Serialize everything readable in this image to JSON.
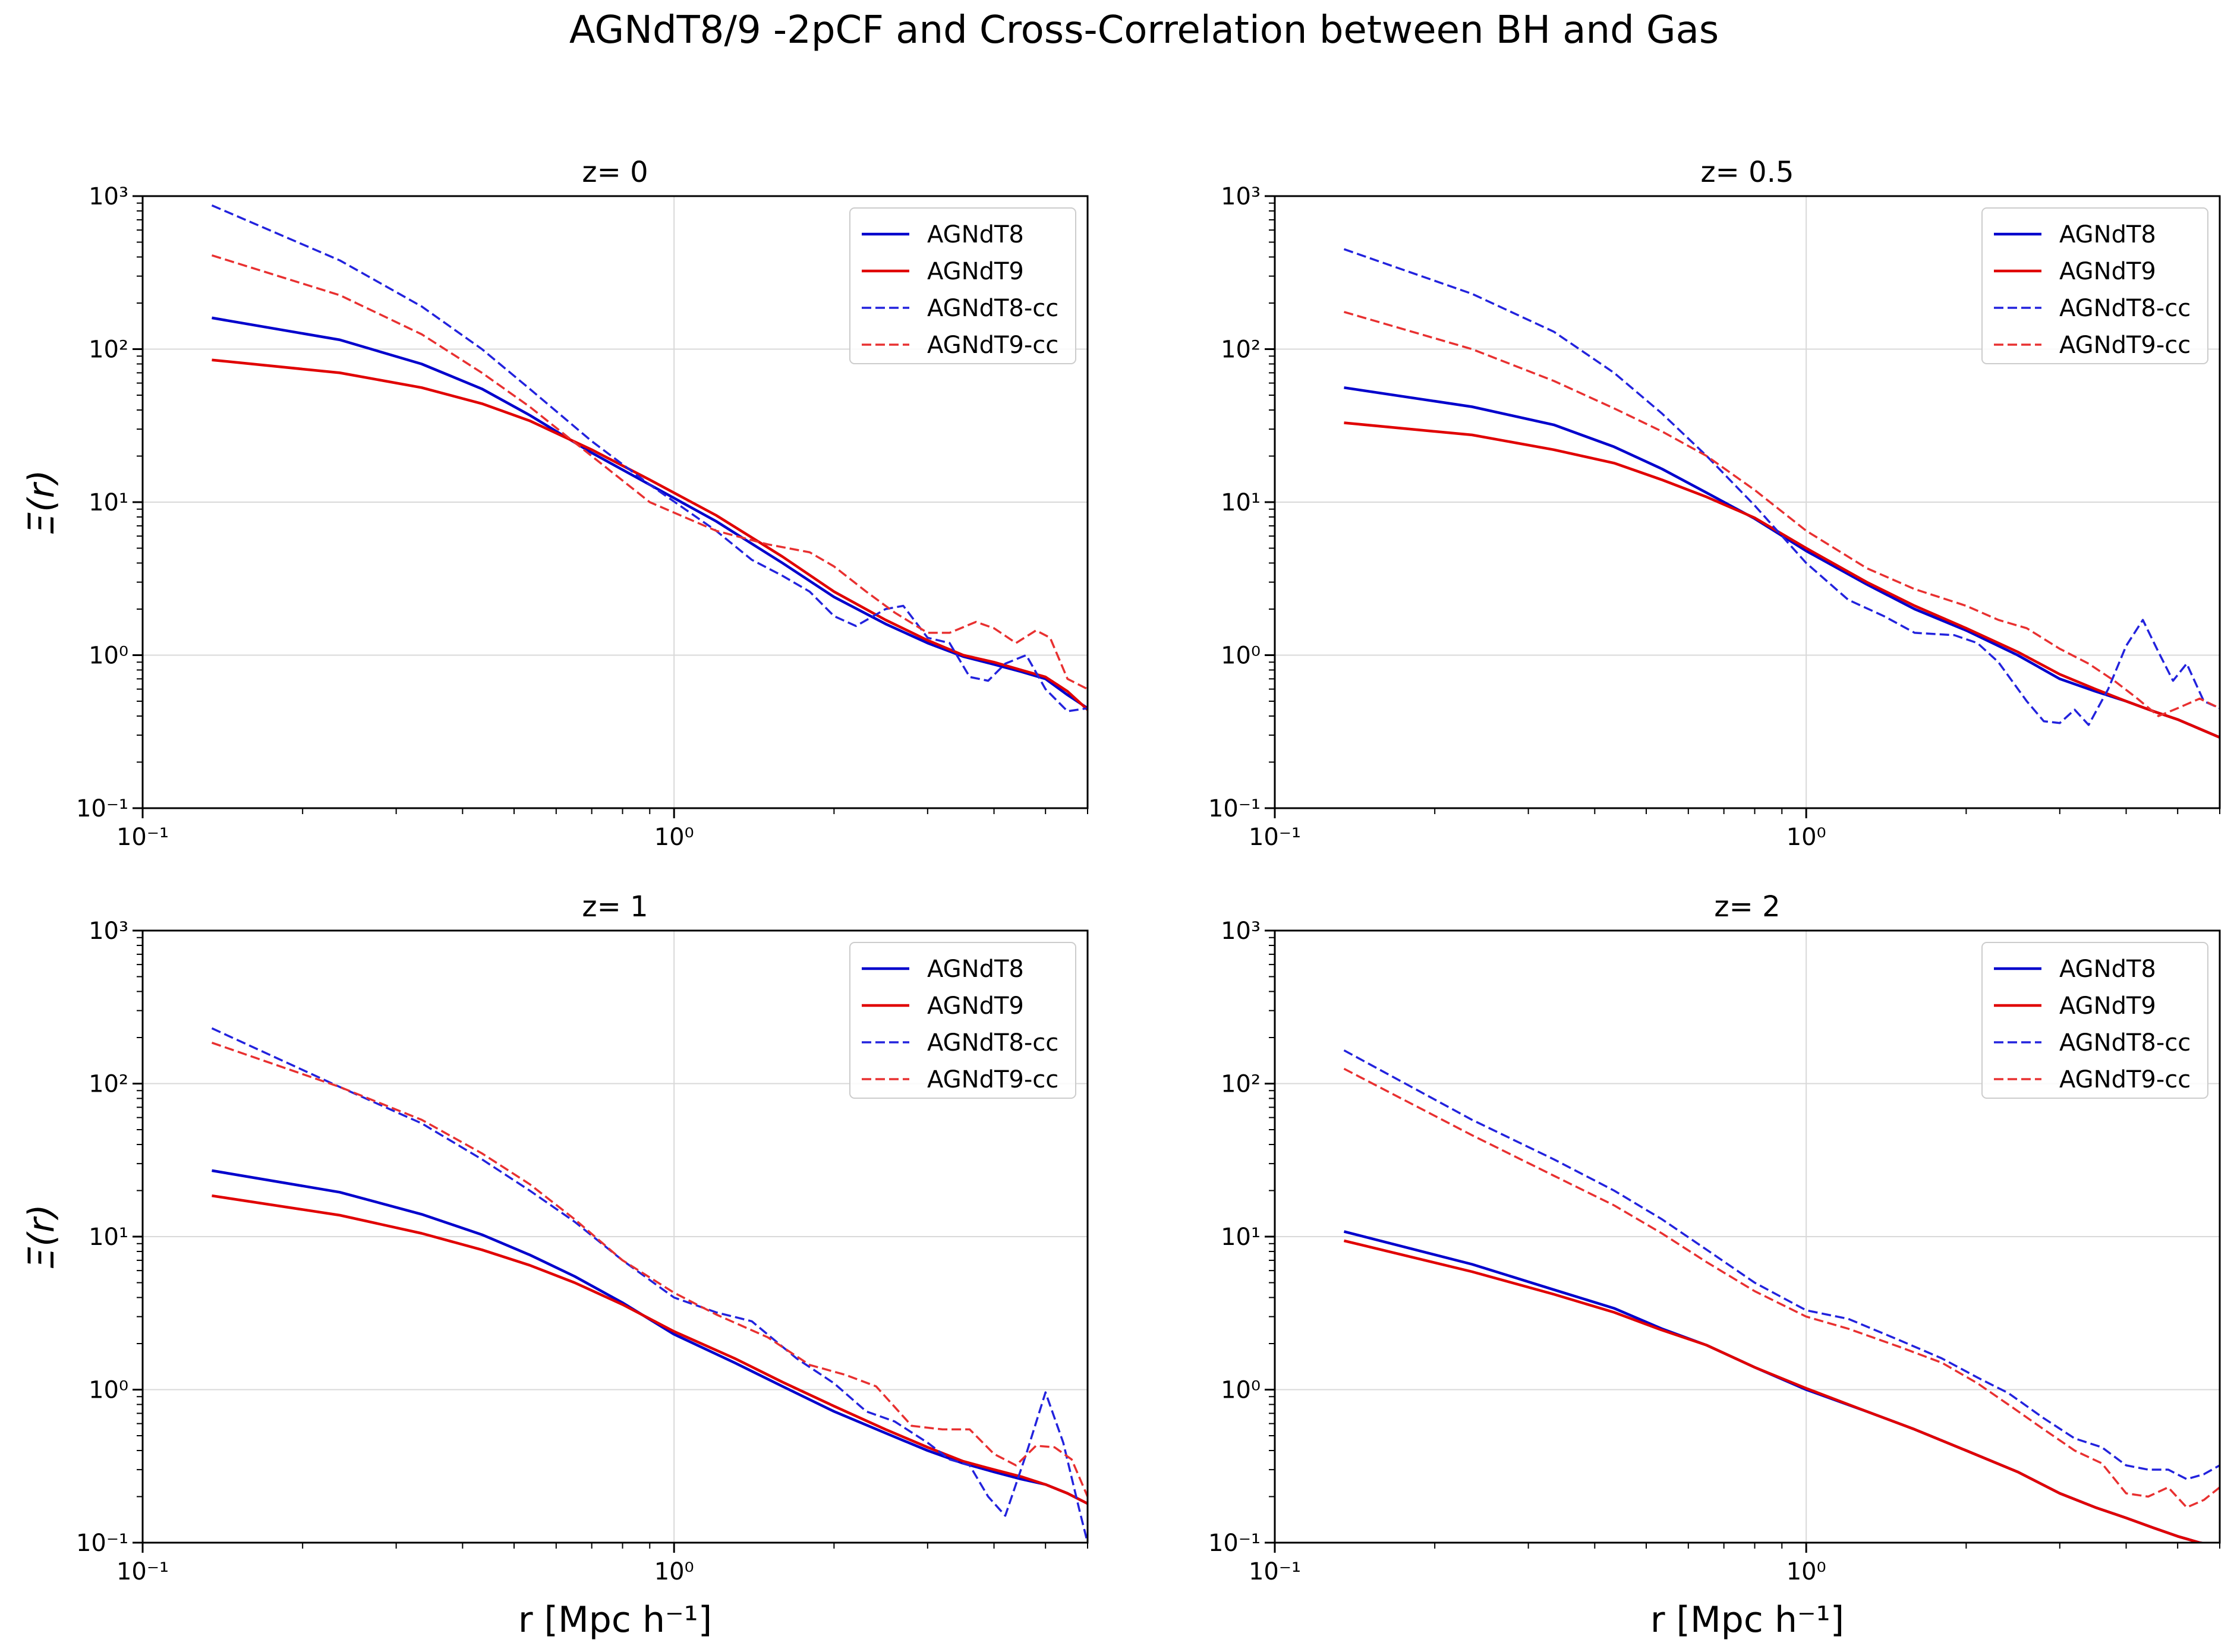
{
  "title": "AGNdT8/9 -2pCF and Cross-Correlation between BH and Gas",
  "ylabel": "Ξ(r)",
  "xlabel": "r [Mpc h⁻¹]",
  "series_styles": [
    {
      "name": "AGNdT8",
      "color": "#0000cc",
      "dash": "solid"
    },
    {
      "name": "AGNdT9",
      "color": "#e00000",
      "dash": "solid"
    },
    {
      "name": "AGNdT8-cc",
      "color": "#2222dd",
      "dash": "dashed"
    },
    {
      "name": "AGNdT9-cc",
      "color": "#e83030",
      "dash": "dashed"
    }
  ],
  "chart_data": [
    {
      "type": "line",
      "title": "z= 0",
      "xscale": "log",
      "yscale": "log",
      "xlim": [
        0.1,
        6.0
      ],
      "ylim": [
        0.1,
        1000
      ],
      "xticks": [
        0.1,
        1
      ],
      "xtick_labels": [
        "10⁻¹",
        "10⁰"
      ],
      "yticks": [
        0.1,
        1,
        10,
        100,
        1000
      ],
      "ytick_labels": [
        "10⁻¹",
        "10⁰",
        "10¹",
        "10²",
        "10³"
      ],
      "grid": true,
      "legend": "top-right",
      "series": [
        {
          "name": "AGNdT8",
          "x": [
            0.135,
            0.235,
            0.335,
            0.435,
            0.535,
            0.7,
            0.9,
            1.2,
            1.6,
            2.0,
            2.5,
            3.0,
            3.5,
            4.0,
            4.5,
            5.0,
            5.5,
            6.0
          ],
          "y": [
            160,
            115,
            80,
            55,
            37,
            21,
            13,
            7.5,
            4.0,
            2.4,
            1.6,
            1.2,
            0.98,
            0.87,
            0.78,
            0.7,
            0.55,
            0.45
          ]
        },
        {
          "name": "AGNdT9",
          "x": [
            0.135,
            0.235,
            0.335,
            0.435,
            0.535,
            0.7,
            0.9,
            1.2,
            1.6,
            2.0,
            2.5,
            3.0,
            3.5,
            4.0,
            4.5,
            5.0,
            5.5,
            6.0
          ],
          "y": [
            85,
            70,
            56,
            44,
            34,
            22,
            14,
            8.2,
            4.4,
            2.6,
            1.7,
            1.25,
            1.0,
            0.9,
            0.8,
            0.72,
            0.58,
            0.44
          ]
        },
        {
          "name": "AGNdT8-cc",
          "x": [
            0.135,
            0.235,
            0.335,
            0.435,
            0.535,
            0.7,
            0.9,
            1.2,
            1.4,
            1.6,
            1.8,
            2.0,
            2.2,
            2.5,
            2.7,
            3.0,
            3.3,
            3.6,
            3.9,
            4.2,
            4.6,
            5.0,
            5.5,
            6.0
          ],
          "y": [
            870,
            380,
            190,
            100,
            55,
            25,
            13,
            6.5,
            4.2,
            3.3,
            2.6,
            1.8,
            1.55,
            2.0,
            2.1,
            1.3,
            1.2,
            0.72,
            0.68,
            0.88,
            1.0,
            0.6,
            0.43,
            0.45
          ]
        },
        {
          "name": "AGNdT9-cc",
          "x": [
            0.135,
            0.235,
            0.335,
            0.435,
            0.535,
            0.7,
            0.9,
            1.2,
            1.5,
            1.8,
            2.0,
            2.3,
            2.6,
            3.0,
            3.3,
            3.7,
            4.0,
            4.4,
            4.8,
            5.1,
            5.5,
            6.0
          ],
          "y": [
            410,
            225,
            125,
            70,
            42,
            20,
            10,
            6.5,
            5.3,
            4.7,
            3.8,
            2.6,
            1.9,
            1.4,
            1.4,
            1.65,
            1.5,
            1.2,
            1.45,
            1.3,
            0.7,
            0.6
          ]
        }
      ]
    },
    {
      "type": "line",
      "title": "z= 0.5",
      "xscale": "log",
      "yscale": "log",
      "xlim": [
        0.1,
        6.0
      ],
      "ylim": [
        0.1,
        1000
      ],
      "xticks": [
        0.1,
        1
      ],
      "xtick_labels": [
        "10⁻¹",
        "10⁰"
      ],
      "yticks": [
        0.1,
        1,
        10,
        100,
        1000
      ],
      "ytick_labels": [
        "10⁻¹",
        "10⁰",
        "10¹",
        "10²",
        "10³"
      ],
      "grid": true,
      "legend": "top-right",
      "series": [
        {
          "name": "AGNdT8",
          "x": [
            0.135,
            0.235,
            0.335,
            0.435,
            0.535,
            0.65,
            0.8,
            1.0,
            1.3,
            1.6,
            2.0,
            2.5,
            3.0,
            3.5,
            4.0,
            4.5,
            5.0,
            5.5,
            6.0
          ],
          "y": [
            56,
            42,
            32,
            23,
            16.5,
            11.5,
            7.8,
            4.8,
            2.9,
            2.0,
            1.45,
            1.0,
            0.7,
            0.58,
            0.5,
            0.43,
            0.38,
            0.33,
            0.29
          ]
        },
        {
          "name": "AGNdT9",
          "x": [
            0.135,
            0.235,
            0.335,
            0.435,
            0.535,
            0.65,
            0.8,
            1.0,
            1.3,
            1.6,
            2.0,
            2.5,
            3.0,
            3.5,
            4.0,
            4.5,
            5.0,
            5.5,
            6.0
          ],
          "y": [
            33,
            27.5,
            22,
            18,
            14,
            10.8,
            7.9,
            5.0,
            3.0,
            2.1,
            1.5,
            1.05,
            0.75,
            0.6,
            0.5,
            0.43,
            0.38,
            0.33,
            0.29
          ]
        },
        {
          "name": "AGNdT8-cc",
          "x": [
            0.135,
            0.235,
            0.335,
            0.435,
            0.535,
            0.65,
            0.8,
            1.0,
            1.2,
            1.4,
            1.6,
            1.9,
            2.1,
            2.3,
            2.6,
            2.8,
            3.0,
            3.2,
            3.4,
            3.7,
            4.0,
            4.3,
            4.6,
            4.9,
            5.2,
            5.6,
            6.0
          ],
          "y": [
            450,
            230,
            130,
            70,
            38,
            20,
            9.5,
            4.0,
            2.3,
            1.8,
            1.4,
            1.35,
            1.2,
            0.9,
            0.5,
            0.37,
            0.36,
            0.44,
            0.35,
            0.6,
            1.15,
            1.7,
            1.05,
            0.68,
            0.88,
            0.5,
            0.45
          ]
        },
        {
          "name": "AGNdT9-cc",
          "x": [
            0.135,
            0.235,
            0.335,
            0.435,
            0.535,
            0.65,
            0.8,
            1.0,
            1.3,
            1.6,
            2.0,
            2.3,
            2.6,
            3.0,
            3.4,
            3.8,
            4.2,
            4.6,
            5.0,
            5.5,
            6.0
          ],
          "y": [
            175,
            100,
            62,
            41,
            29,
            20,
            12,
            6.5,
            3.7,
            2.7,
            2.1,
            1.7,
            1.5,
            1.1,
            0.88,
            0.68,
            0.52,
            0.4,
            0.45,
            0.52,
            0.45
          ]
        }
      ]
    },
    {
      "type": "line",
      "title": "z= 1",
      "xscale": "log",
      "yscale": "log",
      "xlim": [
        0.1,
        6.0
      ],
      "ylim": [
        0.1,
        1000
      ],
      "xticks": [
        0.1,
        1
      ],
      "xtick_labels": [
        "10⁻¹",
        "10⁰"
      ],
      "yticks": [
        0.1,
        1,
        10,
        100,
        1000
      ],
      "ytick_labels": [
        "10⁻¹",
        "10⁰",
        "10¹",
        "10²",
        "10³"
      ],
      "grid": true,
      "legend": "top-right",
      "series": [
        {
          "name": "AGNdT8",
          "x": [
            0.135,
            0.235,
            0.335,
            0.435,
            0.535,
            0.65,
            0.8,
            1.0,
            1.3,
            1.6,
            2.0,
            2.5,
            3.0,
            3.5,
            4.0,
            4.5,
            5.0,
            5.5,
            6.0
          ],
          "y": [
            27,
            19.5,
            14,
            10.3,
            7.6,
            5.5,
            3.7,
            2.3,
            1.5,
            1.05,
            0.72,
            0.52,
            0.4,
            0.33,
            0.29,
            0.26,
            0.24,
            0.21,
            0.18
          ]
        },
        {
          "name": "AGNdT9",
          "x": [
            0.135,
            0.235,
            0.335,
            0.435,
            0.535,
            0.65,
            0.8,
            1.0,
            1.3,
            1.6,
            2.0,
            2.5,
            3.0,
            3.5,
            4.0,
            4.5,
            5.0,
            5.5,
            6.0
          ],
          "y": [
            18.5,
            13.8,
            10.5,
            8.2,
            6.5,
            5.0,
            3.6,
            2.4,
            1.6,
            1.12,
            0.78,
            0.55,
            0.42,
            0.34,
            0.3,
            0.27,
            0.24,
            0.21,
            0.18
          ]
        },
        {
          "name": "AGNdT8-cc",
          "x": [
            0.135,
            0.235,
            0.335,
            0.435,
            0.535,
            0.65,
            0.8,
            1.0,
            1.2,
            1.4,
            1.7,
            2.0,
            2.3,
            2.6,
            3.0,
            3.3,
            3.6,
            3.9,
            4.2,
            4.6,
            5.0,
            5.4,
            5.8,
            6.0
          ],
          "y": [
            230,
            95,
            55,
            32,
            20,
            12.5,
            7,
            4.0,
            3.2,
            2.8,
            1.6,
            1.1,
            0.72,
            0.62,
            0.45,
            0.35,
            0.32,
            0.2,
            0.15,
            0.38,
            0.96,
            0.45,
            0.16,
            0.1
          ]
        },
        {
          "name": "AGNdT9-cc",
          "x": [
            0.135,
            0.235,
            0.335,
            0.435,
            0.535,
            0.65,
            0.8,
            1.0,
            1.2,
            1.5,
            1.8,
            2.1,
            2.4,
            2.8,
            3.2,
            3.6,
            4.0,
            4.4,
            4.8,
            5.2,
            5.6,
            6.0
          ],
          "y": [
            185,
            95,
            58,
            35,
            22,
            13,
            7,
            4.3,
            3.1,
            2.2,
            1.45,
            1.25,
            1.05,
            0.58,
            0.55,
            0.55,
            0.38,
            0.32,
            0.43,
            0.42,
            0.35,
            0.2
          ]
        }
      ]
    },
    {
      "type": "line",
      "title": "z= 2",
      "xscale": "log",
      "yscale": "log",
      "xlim": [
        0.1,
        6.0
      ],
      "ylim": [
        0.1,
        1000
      ],
      "xticks": [
        0.1,
        1
      ],
      "xtick_labels": [
        "10⁻¹",
        "10⁰"
      ],
      "yticks": [
        0.1,
        1,
        10,
        100,
        1000
      ],
      "ytick_labels": [
        "10⁻¹",
        "10⁰",
        "10¹",
        "10²",
        "10³"
      ],
      "grid": true,
      "legend": "top-right",
      "series": [
        {
          "name": "AGNdT8",
          "x": [
            0.135,
            0.235,
            0.335,
            0.435,
            0.535,
            0.65,
            0.8,
            1.0,
            1.3,
            1.6,
            2.0,
            2.5,
            3.0,
            3.5,
            4.0,
            4.5,
            5.0,
            5.5,
            6.0
          ],
          "y": [
            10.8,
            6.6,
            4.5,
            3.4,
            2.5,
            1.95,
            1.4,
            1.0,
            0.72,
            0.55,
            0.4,
            0.29,
            0.21,
            0.17,
            0.145,
            0.125,
            0.11,
            0.1,
            0.095
          ]
        },
        {
          "name": "AGNdT9",
          "x": [
            0.135,
            0.235,
            0.335,
            0.435,
            0.535,
            0.65,
            0.8,
            1.0,
            1.3,
            1.6,
            2.0,
            2.5,
            3.0,
            3.5,
            4.0,
            4.5,
            5.0,
            5.5,
            6.0
          ],
          "y": [
            9.4,
            5.9,
            4.2,
            3.2,
            2.45,
            1.95,
            1.4,
            1.02,
            0.72,
            0.55,
            0.4,
            0.29,
            0.21,
            0.17,
            0.145,
            0.125,
            0.11,
            0.1,
            0.095
          ]
        },
        {
          "name": "AGNdT8-cc",
          "x": [
            0.135,
            0.235,
            0.335,
            0.435,
            0.535,
            0.65,
            0.8,
            1.0,
            1.2,
            1.5,
            1.8,
            2.1,
            2.4,
            2.8,
            3.2,
            3.6,
            4.0,
            4.4,
            4.8,
            5.2,
            5.6,
            6.0
          ],
          "y": [
            165,
            58,
            32,
            20,
            13,
            8.2,
            5.0,
            3.3,
            2.9,
            2.1,
            1.6,
            1.2,
            0.95,
            0.65,
            0.48,
            0.42,
            0.32,
            0.3,
            0.3,
            0.26,
            0.28,
            0.32
          ]
        },
        {
          "name": "AGNdT9-cc",
          "x": [
            0.135,
            0.235,
            0.335,
            0.435,
            0.535,
            0.65,
            0.8,
            1.0,
            1.2,
            1.5,
            1.8,
            2.1,
            2.4,
            2.8,
            3.2,
            3.6,
            4.0,
            4.4,
            4.8,
            5.2,
            5.6,
            6.0
          ],
          "y": [
            125,
            46,
            25,
            16,
            10.5,
            6.8,
            4.4,
            3.0,
            2.5,
            1.9,
            1.5,
            1.1,
            0.8,
            0.55,
            0.4,
            0.33,
            0.21,
            0.2,
            0.23,
            0.17,
            0.19,
            0.23
          ]
        }
      ]
    }
  ]
}
